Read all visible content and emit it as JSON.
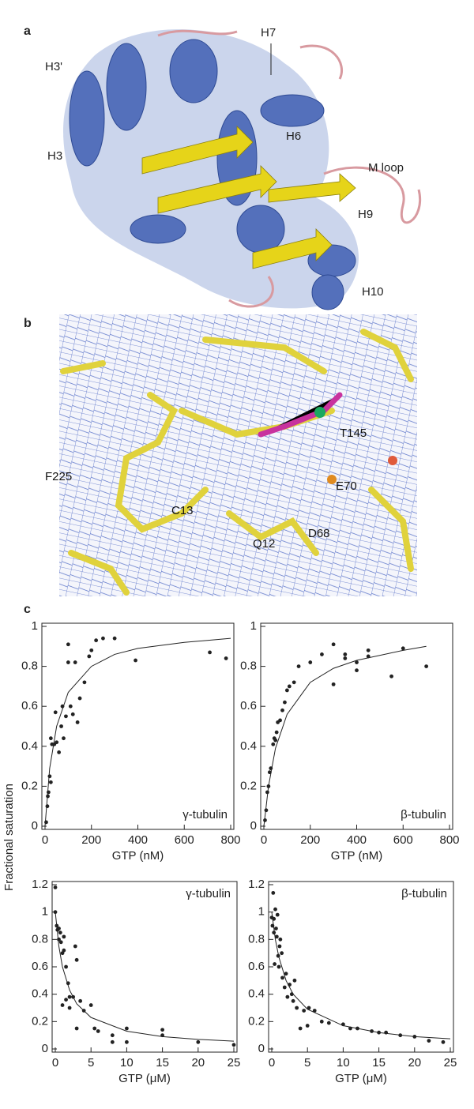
{
  "panels": {
    "a": "a",
    "b": "b",
    "c": "c"
  },
  "panel_a_labels": [
    "H7",
    "H3'",
    "H6",
    "H3",
    "M loop",
    "H9",
    "H10"
  ],
  "panel_b_labels": [
    "T145",
    "F225",
    "E70",
    "C13",
    "Q12",
    "D68"
  ],
  "y_axis_label": "Fractional saturation",
  "chart_data": [
    {
      "type": "scatter",
      "label": "γ-tubulin",
      "label_corner": "lower right",
      "xlabel": "GTP (nM)",
      "color": "#222222",
      "x": [
        5,
        10,
        12,
        15,
        20,
        25,
        25,
        30,
        40,
        45,
        50,
        60,
        70,
        75,
        80,
        90,
        100,
        100,
        110,
        120,
        130,
        140,
        150,
        170,
        190,
        200,
        220,
        250,
        300,
        390,
        710,
        780
      ],
      "values": [
        0.02,
        0.1,
        0.15,
        0.17,
        0.25,
        0.44,
        0.22,
        0.41,
        0.41,
        0.57,
        0.42,
        0.37,
        0.5,
        0.6,
        0.44,
        0.55,
        0.91,
        0.82,
        0.6,
        0.56,
        0.82,
        0.52,
        0.64,
        0.72,
        0.85,
        0.88,
        0.93,
        0.94,
        0.94,
        0.83,
        0.87,
        0.84
      ],
      "fit": {
        "x": [
          0,
          20,
          50,
          100,
          200,
          300,
          400,
          600,
          800
        ],
        "values": [
          0,
          0.29,
          0.5,
          0.67,
          0.8,
          0.86,
          0.89,
          0.92,
          0.94
        ]
      },
      "xlim": [
        0,
        800
      ],
      "ylim": [
        0,
        1
      ],
      "xticks": [
        0,
        200,
        400,
        600,
        800
      ],
      "yticks": [
        0,
        0.2,
        0.4,
        0.6,
        0.8,
        1
      ]
    },
    {
      "type": "scatter",
      "label": "β-tubulin",
      "label_corner": "lower right",
      "xlabel": "GTP (nM)",
      "color": "#222222",
      "x": [
        5,
        10,
        15,
        20,
        25,
        30,
        40,
        45,
        50,
        55,
        60,
        70,
        80,
        90,
        100,
        110,
        130,
        150,
        200,
        250,
        300,
        300,
        350,
        350,
        400,
        400,
        450,
        450,
        550,
        600,
        700
      ],
      "values": [
        0.03,
        0.08,
        0.17,
        0.2,
        0.27,
        0.29,
        0.41,
        0.44,
        0.43,
        0.47,
        0.52,
        0.53,
        0.58,
        0.62,
        0.68,
        0.7,
        0.72,
        0.8,
        0.82,
        0.86,
        0.91,
        0.71,
        0.84,
        0.86,
        0.78,
        0.82,
        0.88,
        0.85,
        0.75,
        0.89,
        0.8
      ],
      "fit": {
        "x": [
          0,
          20,
          50,
          100,
          200,
          300,
          400,
          600,
          700
        ],
        "values": [
          0,
          0.2,
          0.39,
          0.56,
          0.72,
          0.79,
          0.83,
          0.88,
          0.9
        ]
      },
      "xlim": [
        0,
        800
      ],
      "ylim": [
        0,
        1
      ],
      "xticks": [
        0,
        200,
        400,
        600,
        800
      ],
      "yticks": [
        0,
        0.2,
        0.4,
        0.6,
        0.8,
        1
      ]
    },
    {
      "type": "scatter",
      "label": "γ-tubulin",
      "label_corner": "upper right",
      "xlabel": "GTP (μM)",
      "color": "#222222",
      "x": [
        0,
        0,
        0.2,
        0.3,
        0.5,
        0.5,
        0.7,
        0.8,
        1,
        1,
        1.2,
        1.2,
        1.5,
        1.5,
        1.8,
        2,
        2,
        2.5,
        2.8,
        3,
        3,
        3.5,
        4,
        5,
        5.5,
        6,
        8,
        8,
        10,
        10,
        15,
        15,
        20,
        25
      ],
      "values": [
        1.18,
        1.0,
        0.9,
        0.87,
        0.88,
        0.8,
        0.85,
        0.78,
        0.7,
        0.32,
        0.82,
        0.72,
        0.6,
        0.36,
        0.48,
        0.38,
        0.3,
        0.38,
        0.75,
        0.65,
        0.15,
        0.35,
        0.28,
        0.32,
        0.15,
        0.13,
        0.1,
        0.05,
        0.15,
        0.05,
        0.14,
        0.1,
        0.05,
        0.03
      ],
      "fit": {
        "x": [
          0,
          0.5,
          1,
          2,
          3,
          5,
          10,
          15,
          20,
          25
        ],
        "values": [
          1,
          0.75,
          0.6,
          0.43,
          0.33,
          0.23,
          0.13,
          0.09,
          0.07,
          0.057
        ]
      },
      "xlim": [
        0,
        25
      ],
      "ylim": [
        0,
        1.2
      ],
      "xticks": [
        0,
        5,
        10,
        15,
        20,
        25
      ],
      "yticks": [
        0,
        0.2,
        0.4,
        0.6,
        0.8,
        1,
        1.2
      ]
    },
    {
      "type": "scatter",
      "label": "β-tubulin",
      "label_corner": "upper right",
      "xlabel": "GTP (μM)",
      "color": "#222222",
      "x": [
        0,
        0.1,
        0.2,
        0.3,
        0.3,
        0.4,
        0.5,
        0.6,
        0.7,
        0.8,
        0.9,
        1,
        1.1,
        1.2,
        1.4,
        1.5,
        1.8,
        2,
        2.2,
        2.5,
        2.8,
        3,
        3.2,
        3.5,
        4,
        4.5,
        5,
        5.2,
        6,
        7,
        8,
        10,
        11,
        12,
        14,
        15,
        16,
        18,
        20,
        22,
        24
      ],
      "values": [
        0.96,
        0.9,
        1.14,
        0.85,
        0.95,
        0.62,
        1.02,
        0.88,
        0.82,
        0.98,
        0.68,
        0.6,
        0.75,
        0.8,
        0.7,
        0.52,
        0.45,
        0.55,
        0.38,
        0.47,
        0.4,
        0.35,
        0.5,
        0.3,
        0.15,
        0.28,
        0.17,
        0.3,
        0.28,
        0.2,
        0.19,
        0.18,
        0.15,
        0.15,
        0.13,
        0.12,
        0.12,
        0.1,
        0.09,
        0.06,
        0.05
      ],
      "fit": {
        "x": [
          0,
          0.5,
          1,
          2,
          3,
          5,
          10,
          15,
          20,
          25
        ],
        "values": [
          1,
          0.8,
          0.67,
          0.5,
          0.4,
          0.29,
          0.17,
          0.12,
          0.09,
          0.074
        ]
      },
      "xlim": [
        0,
        25
      ],
      "ylim": [
        0,
        1.2
      ],
      "xticks": [
        0,
        5,
        10,
        15,
        20,
        25
      ],
      "yticks": [
        0,
        0.2,
        0.4,
        0.6,
        0.8,
        1,
        1.2
      ]
    }
  ]
}
